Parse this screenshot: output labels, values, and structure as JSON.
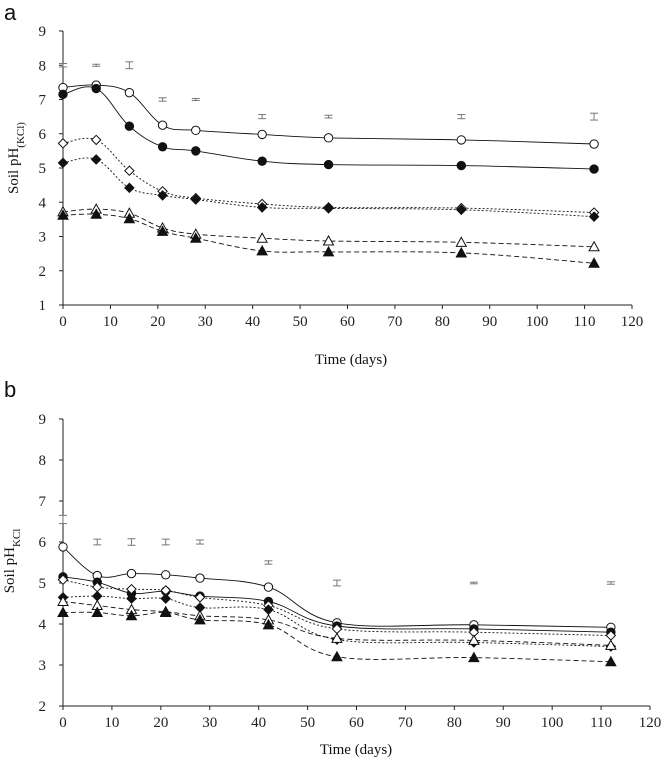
{
  "chart_data": [
    {
      "panel": "a",
      "type": "line",
      "xlabel": "Time (days)",
      "ylabel_main": "Soil pH",
      "ylabel_sub": "(KCl)",
      "xlim": [
        0,
        120
      ],
      "ylim": [
        1,
        9
      ],
      "xticks": [
        "0",
        "10",
        "20",
        "30",
        "40",
        "50",
        "60",
        "70",
        "80",
        "90",
        "100",
        "110",
        "120"
      ],
      "yticks": [
        "1",
        "2",
        "3",
        "4",
        "5",
        "6",
        "7",
        "8",
        "9"
      ],
      "x": [
        0,
        7,
        14,
        21,
        28,
        42,
        56,
        84,
        112
      ],
      "series": [
        {
          "name": "open circle",
          "marker": "circle",
          "fill": "open",
          "dash": "solid",
          "values": [
            7.35,
            7.42,
            7.2,
            6.25,
            6.1,
            5.98,
            5.88,
            5.82,
            5.7
          ]
        },
        {
          "name": "filled circle",
          "marker": "circle",
          "fill": "filled",
          "dash": "solid",
          "values": [
            7.15,
            7.32,
            6.22,
            5.62,
            5.5,
            5.2,
            5.1,
            5.07,
            4.97
          ]
        },
        {
          "name": "open diamond",
          "marker": "diamond",
          "fill": "open",
          "dash": "dotted",
          "values": [
            5.72,
            5.82,
            4.92,
            4.32,
            4.12,
            3.95,
            3.85,
            3.83,
            3.7
          ]
        },
        {
          "name": "filled diamond",
          "marker": "diamond",
          "fill": "filled",
          "dash": "dotted",
          "values": [
            5.15,
            5.25,
            4.42,
            4.2,
            4.08,
            3.85,
            3.82,
            3.78,
            3.58
          ]
        },
        {
          "name": "open triangle",
          "marker": "triangle",
          "fill": "open",
          "dash": "dashed",
          "values": [
            3.72,
            3.8,
            3.68,
            3.25,
            3.07,
            2.95,
            2.87,
            2.83,
            2.7
          ]
        },
        {
          "name": "filled triangle",
          "marker": "triangle",
          "fill": "filled",
          "dash": "dashed",
          "values": [
            3.62,
            3.65,
            3.52,
            3.15,
            2.95,
            2.58,
            2.55,
            2.52,
            2.22
          ]
        }
      ],
      "error_bars": [
        {
          "x": 0,
          "y": 8.0,
          "err": 0.05
        },
        {
          "x": 7,
          "y": 8.0,
          "err": 0.03
        },
        {
          "x": 14,
          "y": 8.0,
          "err": 0.1
        },
        {
          "x": 21,
          "y": 7.0,
          "err": 0.05
        },
        {
          "x": 28,
          "y": 7.0,
          "err": 0.03
        },
        {
          "x": 42,
          "y": 6.5,
          "err": 0.06
        },
        {
          "x": 56,
          "y": 6.5,
          "err": 0.04
        },
        {
          "x": 84,
          "y": 6.5,
          "err": 0.06
        },
        {
          "x": 112,
          "y": 6.5,
          "err": 0.1
        }
      ]
    },
    {
      "panel": "b",
      "type": "line",
      "xlabel": "Time (days)",
      "ylabel_main": "Soil pH",
      "ylabel_sub": "KCl",
      "xlim": [
        0,
        120
      ],
      "ylim": [
        2,
        9
      ],
      "xticks": [
        "0",
        "10",
        "20",
        "30",
        "40",
        "50",
        "60",
        "70",
        "80",
        "90",
        "100",
        "110",
        "120"
      ],
      "yticks": [
        "2",
        "3",
        "4",
        "5",
        "6",
        "7",
        "8",
        "9"
      ],
      "x": [
        0,
        7,
        14,
        21,
        28,
        42,
        56,
        84,
        112
      ],
      "series": [
        {
          "name": "open circle",
          "marker": "circle",
          "fill": "open",
          "dash": "solid",
          "values": [
            5.88,
            5.18,
            5.23,
            5.2,
            5.12,
            4.9,
            4.03,
            3.98,
            3.92
          ]
        },
        {
          "name": "filled circle",
          "marker": "circle",
          "fill": "filled",
          "dash": "solid",
          "values": [
            5.15,
            5.02,
            4.75,
            4.8,
            4.68,
            4.55,
            3.95,
            3.88,
            3.8
          ]
        },
        {
          "name": "open diamond",
          "marker": "diamond",
          "fill": "open",
          "dash": "dotted",
          "values": [
            5.08,
            4.9,
            4.85,
            4.82,
            4.65,
            4.45,
            3.88,
            3.8,
            3.72
          ]
        },
        {
          "name": "filled diamond",
          "marker": "diamond",
          "fill": "filled",
          "dash": "dotted",
          "values": [
            4.65,
            4.68,
            4.62,
            4.62,
            4.4,
            4.35,
            3.62,
            3.55,
            3.45
          ]
        },
        {
          "name": "open triangle",
          "marker": "triangle",
          "fill": "open",
          "dash": "dashed",
          "values": [
            4.55,
            4.45,
            4.35,
            4.3,
            4.2,
            4.1,
            3.65,
            3.6,
            3.48
          ]
        },
        {
          "name": "filled triangle",
          "marker": "triangle",
          "fill": "filled",
          "dash": "dashed",
          "values": [
            4.28,
            4.28,
            4.2,
            4.28,
            4.1,
            3.98,
            3.2,
            3.18,
            3.08
          ]
        }
      ],
      "error_bars": [
        {
          "x": 0,
          "y": 6.55,
          "err": 0.1
        },
        {
          "x": 7,
          "y": 6.0,
          "err": 0.07
        },
        {
          "x": 14,
          "y": 6.0,
          "err": 0.08
        },
        {
          "x": 21,
          "y": 6.0,
          "err": 0.07
        },
        {
          "x": 28,
          "y": 6.0,
          "err": 0.05
        },
        {
          "x": 42,
          "y": 5.5,
          "err": 0.04
        },
        {
          "x": 56,
          "y": 5.0,
          "err": 0.07
        },
        {
          "x": 84,
          "y": 5.0,
          "err": 0.02
        },
        {
          "x": 112,
          "y": 5.0,
          "err": 0.03
        }
      ]
    }
  ]
}
